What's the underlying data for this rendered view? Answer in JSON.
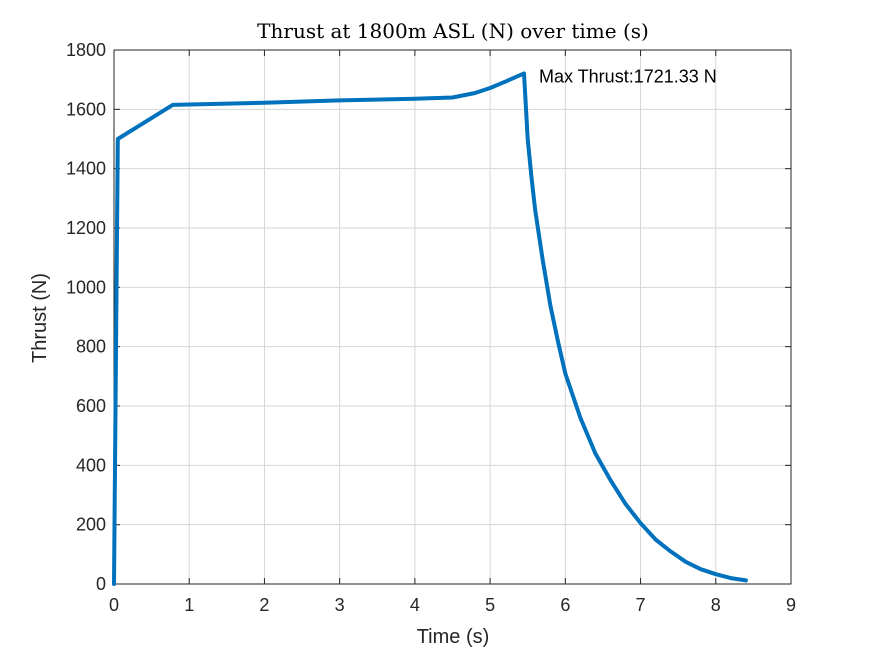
{
  "chart_data": {
    "type": "line",
    "title": "Thrust at 1800m ASL (N) over time (s)",
    "xlabel": "Time (s)",
    "ylabel": "Thrust (N)",
    "xlim": [
      0,
      9
    ],
    "ylim": [
      0,
      1800
    ],
    "xticks": [
      0,
      1,
      2,
      3,
      4,
      5,
      6,
      7,
      8,
      9
    ],
    "yticks": [
      0,
      200,
      400,
      600,
      800,
      1000,
      1200,
      1400,
      1600,
      1800
    ],
    "grid": true,
    "series": [
      {
        "color": "#0072BD",
        "x": [
          0,
          0.05,
          0.78,
          2.0,
          3.0,
          4.0,
          4.5,
          4.8,
          5.0,
          5.2,
          5.45,
          5.5,
          5.55,
          5.6,
          5.7,
          5.8,
          5.9,
          6.0,
          6.2,
          6.4,
          6.6,
          6.8,
          7.0,
          7.2,
          7.4,
          7.6,
          7.8,
          8.0,
          8.2,
          8.4
        ],
        "y": [
          0,
          1500,
          1615,
          1622,
          1630,
          1636,
          1640,
          1655,
          1672,
          1693,
          1721,
          1500,
          1370,
          1260,
          1090,
          940,
          820,
          710,
          560,
          440,
          350,
          270,
          205,
          150,
          110,
          75,
          50,
          33,
          20,
          12
        ]
      }
    ],
    "annotations": [
      {
        "text": "Max Thrust:1721.33 N",
        "x": 5.65,
        "y": 1690
      }
    ]
  }
}
